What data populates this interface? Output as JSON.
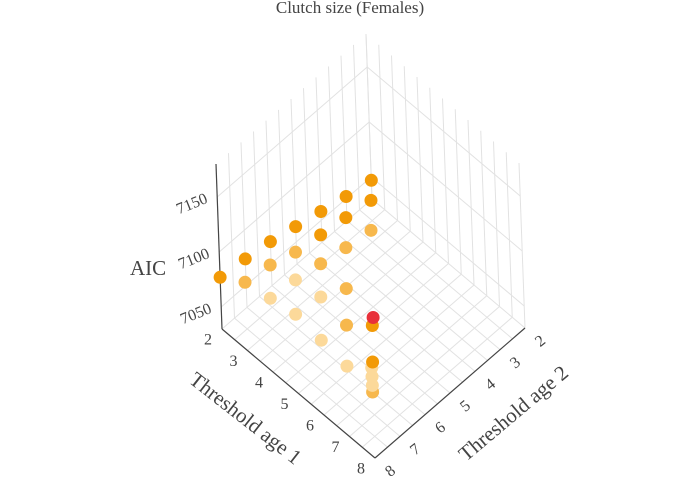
{
  "chart_data": {
    "type": "scatter",
    "title": "Clutch size (Females)",
    "xlabel": "Threshold age 1",
    "ylabel": "Threshold age 2",
    "zlabel": "AIC",
    "x_ticks": [
      "2",
      "3",
      "4",
      "5",
      "6",
      "7",
      "8"
    ],
    "y_ticks": [
      "2",
      "3",
      "4",
      "5",
      "6",
      "7",
      "8"
    ],
    "z_ticks": [
      "7050",
      "7100",
      "7150"
    ],
    "xlim": [
      2,
      8
    ],
    "ylim": [
      2,
      8
    ],
    "zlim": [
      7030,
      7180
    ],
    "grid": true,
    "colors": {
      "min": "#e8303a",
      "low": "#f29a07",
      "mid": "#f7b84d",
      "high": "#fcd99a",
      "grid": "#e2e2e2",
      "axis": "#444444"
    },
    "points": [
      {
        "x": 2,
        "y": 2,
        "z": 7047
      },
      {
        "x": 2,
        "y": 3,
        "z": 7052
      },
      {
        "x": 2,
        "y": 4,
        "z": 7058
      },
      {
        "x": 2,
        "y": 5,
        "z": 7064
      },
      {
        "x": 2,
        "y": 6,
        "z": 7070
      },
      {
        "x": 2,
        "y": 7,
        "z": 7074
      },
      {
        "x": 2,
        "y": 8,
        "z": 7077
      },
      {
        "x": 3,
        "y": 3,
        "z": 7068
      },
      {
        "x": 3,
        "y": 4,
        "z": 7072
      },
      {
        "x": 3,
        "y": 5,
        "z": 7076
      },
      {
        "x": 3,
        "y": 6,
        "z": 7080
      },
      {
        "x": 3,
        "y": 7,
        "z": 7088
      },
      {
        "x": 3,
        "y": 8,
        "z": 7092
      },
      {
        "x": 4,
        "y": 4,
        "z": 7080
      },
      {
        "x": 4,
        "y": 5,
        "z": 7084
      },
      {
        "x": 4,
        "y": 6,
        "z": 7089
      },
      {
        "x": 4,
        "y": 7,
        "z": 7094
      },
      {
        "x": 4,
        "y": 8,
        "z": 7097
      },
      {
        "x": 5,
        "y": 5,
        "z": 7040
      },
      {
        "x": 5,
        "y": 6,
        "z": 7086
      },
      {
        "x": 5,
        "y": 7,
        "z": 7098
      },
      {
        "x": 5,
        "y": 8,
        "z": 7102
      },
      {
        "x": 6,
        "y": 6,
        "z": 7072
      },
      {
        "x": 6,
        "y": 7,
        "z": 7092
      },
      {
        "x": 6,
        "y": 8,
        "z": 7098
      },
      {
        "x": 7,
        "y": 7,
        "z": 7078
      },
      {
        "x": 7,
        "y": 8,
        "z": 7094
      },
      {
        "x": 8,
        "y": 8,
        "z": 7090
      },
      {
        "x": 8,
        "y": 8,
        "z": 7096
      },
      {
        "x": 8,
        "y": 8,
        "z": 7104
      },
      {
        "x": 8,
        "y": 8,
        "z": 7112
      }
    ]
  }
}
